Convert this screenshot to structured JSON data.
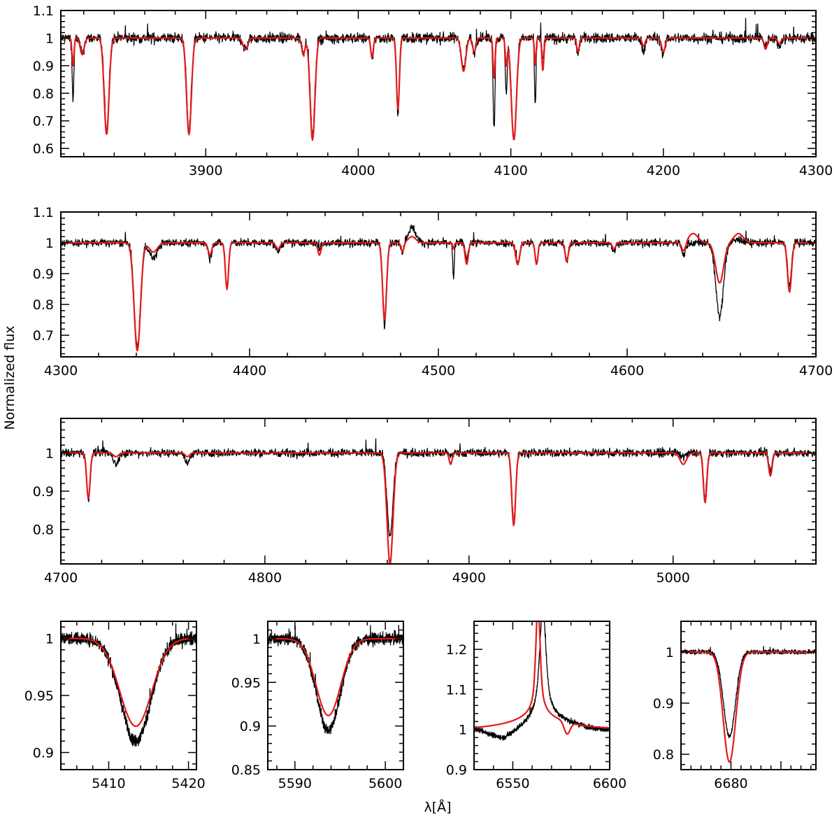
{
  "colors": {
    "observed": "#000000",
    "model": "#e31a1c"
  },
  "ylabel": "Normalized flux",
  "xlabel": "λ[Å]",
  "chart_data": [
    {
      "id": "panel-1",
      "type": "line",
      "xlim": [
        3805,
        4300
      ],
      "ylim": [
        0.57,
        1.1
      ],
      "xticks": [
        3900,
        4000,
        4100,
        4200,
        4300
      ],
      "yticks": [
        0.6,
        0.7,
        0.8,
        0.9,
        1,
        1.1
      ],
      "xtick_labels": [
        "3900",
        "4000",
        "4100",
        "4200",
        "4300"
      ],
      "ytick_labels": [
        "0.6",
        "0.7",
        "0.8",
        "0.9",
        "1",
        "1.1"
      ],
      "continuum": {
        "obs": 1.0,
        "model": 1.0
      },
      "noise": 0.018,
      "lines": [
        {
          "c": 3813,
          "w": 0.6,
          "o": 0.22,
          "m": 0.1
        },
        {
          "c": 3819,
          "w": 1.2,
          "o": 0.06,
          "m": 0.06
        },
        {
          "c": 3835,
          "w": 1.5,
          "o": 0.33,
          "m": 0.35
        },
        {
          "c": 3889,
          "w": 1.5,
          "o": 0.33,
          "m": 0.35
        },
        {
          "c": 3926,
          "w": 1.5,
          "o": 0.04,
          "m": 0.04
        },
        {
          "c": 3964,
          "w": 1.0,
          "o": 0.05,
          "m": 0.06
        },
        {
          "c": 3970,
          "w": 1.5,
          "o": 0.35,
          "m": 0.37
        },
        {
          "c": 4009,
          "w": 0.8,
          "o": 0.08,
          "m": 0.07
        },
        {
          "c": 4026,
          "w": 0.9,
          "o": 0.27,
          "m": 0.26
        },
        {
          "c": 4069,
          "w": 1.4,
          "o": 0.11,
          "m": 0.12
        },
        {
          "c": 4076,
          "w": 1.0,
          "o": 0.05,
          "m": 0.05
        },
        {
          "c": 4089,
          "w": 0.6,
          "o": 0.33,
          "m": 0.15
        },
        {
          "c": 4097,
          "w": 0.6,
          "o": 0.2,
          "m": 0.1
        },
        {
          "c": 4102,
          "w": 1.6,
          "o": 0.36,
          "m": 0.37
        },
        {
          "c": 4116,
          "w": 0.5,
          "o": 0.25,
          "m": 0.1
        },
        {
          "c": 4121,
          "w": 0.6,
          "o": 0.08,
          "m": 0.12
        },
        {
          "c": 4144,
          "w": 0.8,
          "o": 0.06,
          "m": 0.05
        },
        {
          "c": 4187,
          "w": 0.9,
          "o": 0.05,
          "m": 0.03
        },
        {
          "c": 4200,
          "w": 1.1,
          "o": 0.06,
          "m": 0.05
        },
        {
          "c": 4267,
          "w": 1.0,
          "o": 0.03,
          "m": 0.04
        },
        {
          "c": 4276,
          "w": 1.0,
          "o": 0.03,
          "m": 0.02
        }
      ]
    },
    {
      "id": "panel-2",
      "type": "line",
      "xlim": [
        4300,
        4700
      ],
      "ylim": [
        0.63,
        1.1
      ],
      "xticks": [
        4300,
        4400,
        4500,
        4600,
        4700
      ],
      "yticks": [
        0.7,
        0.8,
        0.9,
        1,
        1.1
      ],
      "xtick_labels": [
        "4300",
        "4400",
        "4500",
        "4600",
        "4700"
      ],
      "ytick_labels": [
        "0.7",
        "0.8",
        "0.9",
        "1",
        "1.1"
      ],
      "continuum": {
        "obs": 1.0,
        "model": 1.0
      },
      "noise": 0.012,
      "lines": [
        {
          "c": 4340.5,
          "w": 1.6,
          "o": 0.34,
          "m": 0.35
        },
        {
          "c": 4349,
          "w": 2.0,
          "o": 0.05,
          "m": 0.03
        },
        {
          "c": 4379,
          "w": 0.9,
          "o": 0.05,
          "m": 0.04
        },
        {
          "c": 4388,
          "w": 0.8,
          "o": 0.15,
          "m": 0.15
        },
        {
          "c": 4415,
          "w": 1.0,
          "o": 0.03,
          "m": 0.02
        },
        {
          "c": 4437,
          "w": 0.8,
          "o": 0.02,
          "m": 0.04
        },
        {
          "c": 4471.5,
          "w": 1.0,
          "o": 0.27,
          "m": 0.25
        },
        {
          "c": 4481,
          "w": 0.7,
          "o": 0.03,
          "m": 0.03
        },
        {
          "c": 4508,
          "w": 0.4,
          "o": 0.12,
          "m": 0.02
        },
        {
          "c": 4515,
          "w": 0.8,
          "o": 0.05,
          "m": 0.07
        },
        {
          "c": 4542,
          "w": 1.0,
          "o": 0.07,
          "m": 0.07
        },
        {
          "c": 4552,
          "w": 0.7,
          "o": 0.07,
          "m": 0.07
        },
        {
          "c": 4568,
          "w": 0.8,
          "o": 0.06,
          "m": 0.06
        },
        {
          "c": 4593,
          "w": 0.8,
          "o": 0.03,
          "m": 0.02
        },
        {
          "c": 4630,
          "w": 1.0,
          "o": 0.04,
          "m": 0.03
        },
        {
          "c": 4649,
          "w": 2.0,
          "o": 0.24,
          "m": 0.13
        },
        {
          "c": 4686,
          "w": 1.0,
          "o": 0.14,
          "m": 0.16
        }
      ],
      "emission": [
        {
          "c": 4486,
          "w": 2.0,
          "o": 0.05,
          "m": 0.02
        },
        {
          "c": 4635,
          "w": 2.5,
          "o": 0.0,
          "m": 0.03
        },
        {
          "c": 4659,
          "w": 2.5,
          "o": 0.01,
          "m": 0.03
        }
      ]
    },
    {
      "id": "panel-3",
      "type": "line",
      "xlim": [
        4700,
        5070
      ],
      "ylim": [
        0.71,
        1.09
      ],
      "xticks": [
        4700,
        4800,
        4900,
        5000
      ],
      "yticks": [
        0.8,
        0.9,
        1
      ],
      "xtick_labels": [
        "4700",
        "4800",
        "4900",
        "5000"
      ],
      "ytick_labels": [
        "0.8",
        "0.9",
        "1"
      ],
      "continuum": {
        "obs": 1.0,
        "model": 1.0
      },
      "noise": 0.01,
      "lines": [
        {
          "c": 4713.5,
          "w": 0.8,
          "o": 0.12,
          "m": 0.12
        },
        {
          "c": 4727,
          "w": 1.2,
          "o": 0.03,
          "m": 0.01
        },
        {
          "c": 4762,
          "w": 1.0,
          "o": 0.03,
          "m": 0.01
        },
        {
          "c": 4861.3,
          "w": 1.4,
          "o": 0.22,
          "m": 0.29
        },
        {
          "c": 4891,
          "w": 0.7,
          "o": 0.01,
          "m": 0.03
        },
        {
          "c": 4921.9,
          "w": 0.9,
          "o": 0.18,
          "m": 0.19
        },
        {
          "c": 5005,
          "w": 1.5,
          "o": 0.01,
          "m": 0.03
        },
        {
          "c": 5015.7,
          "w": 0.8,
          "o": 0.12,
          "m": 0.13
        },
        {
          "c": 5047.7,
          "w": 0.8,
          "o": 0.05,
          "m": 0.06
        }
      ]
    },
    {
      "id": "panel-4",
      "type": "line",
      "xlim": [
        5404,
        5421
      ],
      "ylim": [
        0.885,
        1.015
      ],
      "xticks": [
        5410,
        5420
      ],
      "yticks": [
        0.9,
        0.95,
        1
      ],
      "xtick_labels": [
        "5410",
        "5420"
      ],
      "ytick_labels": [
        "0.9",
        "0.95",
        "1"
      ],
      "continuum": {
        "obs": 1.0,
        "model": 1.0
      },
      "noise": 0.005,
      "lines": [
        {
          "c": 5413.4,
          "w": 1.9,
          "o": 0.09,
          "m": 0.077
        }
      ]
    },
    {
      "id": "panel-5",
      "type": "line",
      "xlim": [
        5587,
        5602
      ],
      "ylim": [
        0.85,
        1.02
      ],
      "xticks": [
        5590,
        5600
      ],
      "yticks": [
        0.85,
        0.9,
        0.95,
        1
      ],
      "xtick_labels": [
        "5590",
        "5600"
      ],
      "ytick_labels": [
        "0.85",
        "0.9",
        "0.95",
        "1"
      ],
      "continuum": {
        "obs": 1.0,
        "model": 1.0
      },
      "noise": 0.006,
      "lines": [
        {
          "c": 5593.7,
          "w": 1.3,
          "o": 0.105,
          "m": 0.088
        }
      ]
    },
    {
      "id": "panel-6",
      "type": "line",
      "xlim": [
        6530,
        6600
      ],
      "ylim": [
        0.9,
        1.27
      ],
      "xticks": [
        6550,
        6600
      ],
      "yticks": [
        0.9,
        1,
        1.1,
        1.2
      ],
      "xtick_labels": [
        "6550",
        "6600"
      ],
      "ytick_labels": [
        "0.9",
        "1",
        "1.1",
        "1.2"
      ],
      "continuum": {
        "obs": 1.0,
        "model": 1.0
      },
      "noise": 0.006,
      "halpha": {
        "center_obs": 6565.5,
        "center_model": 6563,
        "peak_obs": 0.24,
        "peak_model": 0.26
      }
    },
    {
      "id": "panel-7",
      "type": "line",
      "xlim": [
        6670,
        6697
      ],
      "ylim": [
        0.77,
        1.06
      ],
      "xticks": [
        6680
      ],
      "yticks": [
        0.8,
        0.9,
        1
      ],
      "xtick_labels": [
        "6680"
      ],
      "ytick_labels": [
        "0.8",
        "0.9",
        "1"
      ],
      "continuum": {
        "obs": 1.0,
        "model": 1.0
      },
      "noise": 0.004,
      "lines": [
        {
          "c": 6679.7,
          "w": 1.2,
          "o": 0.165,
          "m": 0.215
        }
      ]
    }
  ]
}
